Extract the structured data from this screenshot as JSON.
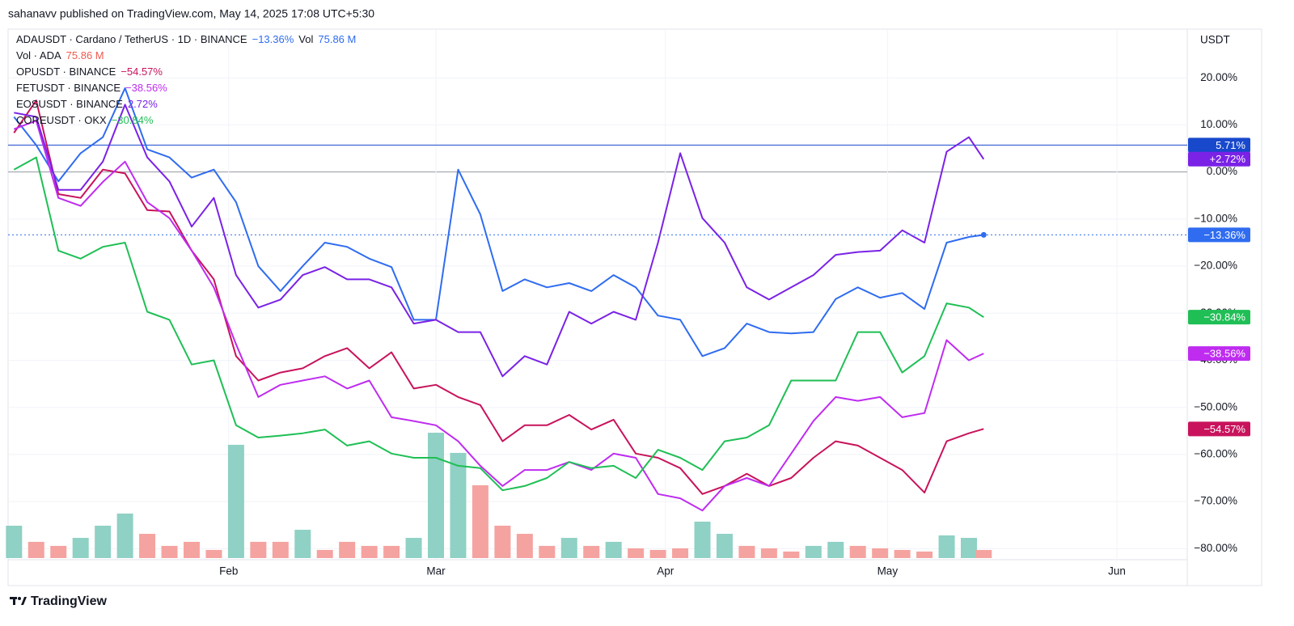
{
  "header": {
    "byline": "sahanavv published on TradingView.com, May 14, 2025 17:08 UTC+5:30"
  },
  "footer": {
    "brand": "TradingView"
  },
  "chart_data": {
    "type": "line",
    "currency": "USDT",
    "x": [
      3,
      6,
      9,
      12,
      15,
      18,
      21,
      24,
      27,
      30,
      33,
      36,
      39,
      42,
      45,
      48,
      51,
      54,
      57,
      60,
      63,
      66,
      69,
      72,
      75,
      78,
      81,
      84,
      87,
      90,
      93,
      96,
      99,
      102,
      105,
      108,
      111,
      114,
      117,
      120,
      123,
      126,
      129,
      132,
      134
    ],
    "xlim": [
      2.2,
      161.5
    ],
    "xticks": [
      {
        "value": 32,
        "label": "Feb"
      },
      {
        "value": 60,
        "label": "Mar"
      },
      {
        "value": 91,
        "label": "Apr"
      },
      {
        "value": 121,
        "label": "May"
      },
      {
        "value": 152,
        "label": "Jun"
      }
    ],
    "ylim": [
      -82,
      30
    ],
    "yticks": [
      {
        "value": 20,
        "label": "20.00%"
      },
      {
        "value": 10,
        "label": "10.00%"
      },
      {
        "value": 0,
        "label": "0.00%"
      },
      {
        "value": -10,
        "label": "−10.00%"
      },
      {
        "value": -20,
        "label": "−20.00%"
      },
      {
        "value": -30,
        "label": "−30.00%"
      },
      {
        "value": -40,
        "label": "−40.00%"
      },
      {
        "value": -50,
        "label": "−50.00%"
      },
      {
        "value": -60,
        "label": "−60.00%"
      },
      {
        "value": -70,
        "label": "−70.00%"
      },
      {
        "value": -80,
        "label": "−80.00%"
      }
    ],
    "grid": true,
    "price_line": {
      "value": 5.71,
      "label": "5.71%",
      "color": "#1848cc"
    },
    "series": [
      {
        "name": "ADAUSDT · Cardano / TetherUS · 1D · BINANCE",
        "color": "#2f6cf0",
        "legend_label": "−13.36%",
        "axis_label": "−13.36%",
        "values": [
          11.7,
          5.7,
          -2,
          4,
          7.4,
          17.8,
          4.8,
          3.1,
          -1.2,
          0.5,
          -6.4,
          -20,
          -25.3,
          -20,
          -15,
          -15.9,
          -18.4,
          -20.2,
          -31.4,
          -31.4,
          0.5,
          -9,
          -25.3,
          -22.8,
          -24.5,
          -23.6,
          -25.3,
          -21.9,
          -24.5,
          -30.5,
          -31.4,
          -39.1,
          -37.4,
          -32.2,
          -34,
          -34.3,
          -34,
          -27,
          -24.5,
          -26.7,
          -25.7,
          -29.1,
          -15,
          -13.8,
          -13.36
        ]
      },
      {
        "name": "OPUSDT · BINANCE",
        "color": "#c8135c",
        "legend_label": "−54.57%",
        "axis_label": "−54.57%",
        "values": [
          8.3,
          15.2,
          -4.7,
          -5.5,
          0.5,
          -0.3,
          -8.1,
          -8.4,
          -16.7,
          -22.8,
          -39.1,
          -44.3,
          -42.6,
          -41.7,
          -39.1,
          -37.4,
          -41.7,
          -38.3,
          -46,
          -45.2,
          -47.8,
          -49.5,
          -57.2,
          -53.8,
          -53.8,
          -51.6,
          -54.7,
          -52.6,
          -59.8,
          -60.7,
          -62.9,
          -68.4,
          -66.7,
          -64.1,
          -66.7,
          -65,
          -60.7,
          -57.2,
          -58.1,
          -60.7,
          -63.3,
          -68.1,
          -57.2,
          -55.5,
          -54.57
        ]
      },
      {
        "name": "FETUSDT · BINANCE",
        "color": "#bf2cf0",
        "legend_label": "−38.56%",
        "axis_label": "−38.56%",
        "values": [
          9.1,
          10.9,
          -5.5,
          -7.2,
          -2.1,
          2.2,
          -6.4,
          -9.8,
          -16.7,
          -24.5,
          -36.6,
          -47.8,
          -45.2,
          -44.3,
          -43.4,
          -46,
          -44.3,
          -52.1,
          -52.9,
          -53.8,
          -57.2,
          -62.4,
          -66.7,
          -63.3,
          -63.3,
          -61.6,
          -63.3,
          -59.8,
          -60.7,
          -68.4,
          -69.3,
          -71.9,
          -66.7,
          -65,
          -66.7,
          -59.8,
          -52.9,
          -47.8,
          -48.6,
          -47.8,
          -52.1,
          -51.2,
          -35.7,
          -40,
          -38.56
        ]
      },
      {
        "name": "EOSUSDT · BINANCE",
        "color": "#7a22e6",
        "legend_label": "2.72%",
        "axis_label": "+2.72%",
        "values": [
          12.6,
          11.7,
          -3.8,
          -3.8,
          2.2,
          14.3,
          3.1,
          -2,
          -11.6,
          -5.5,
          -21.9,
          -28.8,
          -27.1,
          -21.9,
          -20.2,
          -22.8,
          -22.8,
          -24.5,
          -32.2,
          -31.4,
          -34,
          -34,
          -43.4,
          -39.1,
          -40.9,
          -29.7,
          -32.2,
          -29.7,
          -31.4,
          -15,
          4,
          -9.8,
          -15,
          -24.5,
          -27.1,
          -24.5,
          -21.9,
          -17.6,
          -17,
          -16.7,
          -12.4,
          -15,
          4.3,
          7.4,
          2.72
        ]
      },
      {
        "name": "COREUSDT · OKX",
        "color": "#1fbf55",
        "legend_label": "−30.84%",
        "axis_label": "−30.84%",
        "values": [
          0.5,
          3.1,
          -16.7,
          -18.4,
          -15.9,
          -15,
          -29.7,
          -31.4,
          -40.9,
          -40,
          -53.8,
          -56.4,
          -56,
          -55.5,
          -54.7,
          -58.1,
          -57.2,
          -59.8,
          -60.7,
          -60.7,
          -62.4,
          -62.9,
          -67.6,
          -66.7,
          -65,
          -61.6,
          -62.9,
          -62.4,
          -65,
          -59,
          -60.7,
          -63.3,
          -57.2,
          -56.4,
          -53.8,
          -44.3,
          -44.3,
          -44.3,
          -34,
          -34,
          -42.6,
          -39.1,
          -27.9,
          -28.8,
          -30.84
        ]
      }
    ],
    "volume": {
      "name": "Vol · ADA",
      "short_name": "Vol",
      "last_label": "75.86 M",
      "label_color": "#f05a50",
      "values": [
        303,
        152,
        114,
        189,
        303,
        417,
        227,
        114,
        152,
        76,
        1061,
        152,
        152,
        265,
        76,
        152,
        114,
        114,
        189,
        1174,
        985,
        682,
        303,
        227,
        114,
        189,
        114,
        152,
        91,
        76,
        91,
        341,
        227,
        114,
        91,
        61,
        114,
        152,
        114,
        91,
        76,
        61,
        212,
        189,
        75.86
      ],
      "colors": [
        "#8fd1c4",
        "#f5a3a0",
        "#f5a3a0",
        "#8fd1c4",
        "#8fd1c4",
        "#8fd1c4",
        "#f5a3a0",
        "#f5a3a0",
        "#f5a3a0",
        "#f5a3a0",
        "#8fd1c4",
        "#f5a3a0",
        "#f5a3a0",
        "#8fd1c4",
        "#f5a3a0",
        "#f5a3a0",
        "#f5a3a0",
        "#f5a3a0",
        "#8fd1c4",
        "#8fd1c4",
        "#8fd1c4",
        "#f5a3a0",
        "#f5a3a0",
        "#f5a3a0",
        "#f5a3a0",
        "#8fd1c4",
        "#f5a3a0",
        "#8fd1c4",
        "#f5a3a0",
        "#f5a3a0",
        "#f5a3a0",
        "#8fd1c4",
        "#8fd1c4",
        "#f5a3a0",
        "#f5a3a0",
        "#f5a3a0",
        "#8fd1c4",
        "#8fd1c4",
        "#f5a3a0",
        "#f5a3a0",
        "#f5a3a0",
        "#f5a3a0",
        "#8fd1c4",
        "#8fd1c4",
        "#f5a3a0"
      ]
    }
  }
}
